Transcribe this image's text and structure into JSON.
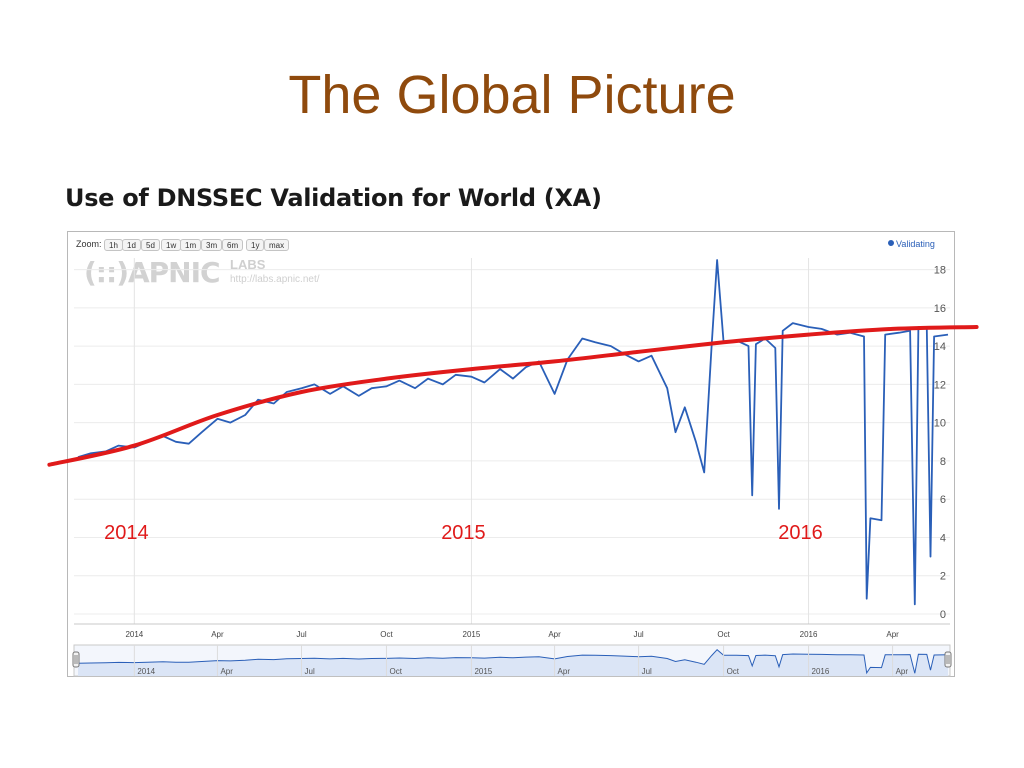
{
  "slide": {
    "title": "The Global Picture"
  },
  "chart_heading": "Use of DNSSEC Validation for World (XA)",
  "toolbar": {
    "zoom_label": "Zoom:",
    "buttons": [
      "1h",
      "1d",
      "5d",
      "1w",
      "1m",
      "3m",
      "6m",
      "1y",
      "max"
    ]
  },
  "logo": {
    "mark": "(::)APNIC",
    "labs": "LABS",
    "url": "http://labs.apnic.net/"
  },
  "colors": {
    "title": "#8f4a0d",
    "series": "#2a5fb8",
    "trend": "#e01a1a",
    "annotation": "#e01a1a"
  },
  "chart_data": {
    "type": "line",
    "title": "Use of DNSSEC Validation for World (XA)",
    "legend": {
      "entries": [
        "Validating"
      ],
      "placement": "top-right"
    },
    "y_axis": {
      "ticks": [
        0,
        2,
        4,
        6,
        8,
        10,
        12,
        14,
        16,
        18
      ],
      "range": [
        0,
        18.5
      ],
      "side": "right"
    },
    "x_axis": {
      "range": [
        "2013-11-01",
        "2016-05-31"
      ],
      "ticks": [
        {
          "label": "2014",
          "date": "2014-01-01"
        },
        {
          "label": "Apr",
          "date": "2014-04-01"
        },
        {
          "label": "Jul",
          "date": "2014-07-01"
        },
        {
          "label": "Oct",
          "date": "2014-10-01"
        },
        {
          "label": "2015",
          "date": "2015-01-01"
        },
        {
          "label": "Apr",
          "date": "2015-04-01"
        },
        {
          "label": "Jul",
          "date": "2015-07-01"
        },
        {
          "label": "Oct",
          "date": "2015-10-01"
        },
        {
          "label": "2016",
          "date": "2016-01-01"
        },
        {
          "label": "Apr",
          "date": "2016-04-01"
        }
      ]
    },
    "grid": true,
    "series": [
      {
        "name": "Validating",
        "points": [
          [
            "2013-11-01",
            8.2
          ],
          [
            "2013-11-15",
            8.4
          ],
          [
            "2013-12-01",
            8.5
          ],
          [
            "2013-12-15",
            8.8
          ],
          [
            "2014-01-01",
            8.7
          ],
          [
            "2014-01-15",
            9.0
          ],
          [
            "2014-02-01",
            9.3
          ],
          [
            "2014-02-15",
            9.0
          ],
          [
            "2014-03-01",
            8.9
          ],
          [
            "2014-03-15",
            9.5
          ],
          [
            "2014-04-01",
            10.2
          ],
          [
            "2014-04-15",
            10.0
          ],
          [
            "2014-05-01",
            10.4
          ],
          [
            "2014-05-15",
            11.2
          ],
          [
            "2014-06-01",
            11.0
          ],
          [
            "2014-06-15",
            11.6
          ],
          [
            "2014-07-01",
            11.8
          ],
          [
            "2014-07-15",
            12.0
          ],
          [
            "2014-08-01",
            11.5
          ],
          [
            "2014-08-15",
            11.9
          ],
          [
            "2014-09-01",
            11.4
          ],
          [
            "2014-09-15",
            11.8
          ],
          [
            "2014-10-01",
            11.9
          ],
          [
            "2014-10-15",
            12.2
          ],
          [
            "2014-11-01",
            11.8
          ],
          [
            "2014-11-15",
            12.3
          ],
          [
            "2014-12-01",
            12.0
          ],
          [
            "2014-12-15",
            12.5
          ],
          [
            "2015-01-01",
            12.4
          ],
          [
            "2015-01-15",
            12.1
          ],
          [
            "2015-02-01",
            12.8
          ],
          [
            "2015-02-15",
            12.3
          ],
          [
            "2015-03-01",
            12.9
          ],
          [
            "2015-03-15",
            13.2
          ],
          [
            "2015-04-01",
            11.5
          ],
          [
            "2015-04-15",
            13.3
          ],
          [
            "2015-05-01",
            14.4
          ],
          [
            "2015-05-15",
            14.2
          ],
          [
            "2015-06-01",
            14.0
          ],
          [
            "2015-06-15",
            13.6
          ],
          [
            "2015-07-01",
            13.2
          ],
          [
            "2015-07-15",
            13.5
          ],
          [
            "2015-08-01",
            11.8
          ],
          [
            "2015-08-10",
            9.5
          ],
          [
            "2015-08-20",
            10.8
          ],
          [
            "2015-09-01",
            9.0
          ],
          [
            "2015-09-10",
            7.4
          ],
          [
            "2015-09-18",
            14.0
          ],
          [
            "2015-09-24",
            18.5
          ],
          [
            "2015-10-01",
            14.2
          ],
          [
            "2015-10-15",
            14.3
          ],
          [
            "2015-10-28",
            14.0
          ],
          [
            "2015-11-01",
            6.2
          ],
          [
            "2015-11-05",
            14.1
          ],
          [
            "2015-11-15",
            14.4
          ],
          [
            "2015-11-26",
            13.9
          ],
          [
            "2015-11-30",
            5.5
          ],
          [
            "2015-12-04",
            14.8
          ],
          [
            "2015-12-15",
            15.2
          ],
          [
            "2016-01-01",
            15.0
          ],
          [
            "2016-01-15",
            14.9
          ],
          [
            "2016-02-01",
            14.6
          ],
          [
            "2016-02-15",
            14.7
          ],
          [
            "2016-03-01",
            14.5
          ],
          [
            "2016-03-04",
            0.8
          ],
          [
            "2016-03-08",
            5.0
          ],
          [
            "2016-03-20",
            4.9
          ],
          [
            "2016-03-24",
            14.6
          ],
          [
            "2016-04-08",
            14.7
          ],
          [
            "2016-04-20",
            14.8
          ],
          [
            "2016-04-25",
            0.5
          ],
          [
            "2016-04-29",
            15.0
          ],
          [
            "2016-05-08",
            14.9
          ],
          [
            "2016-05-12",
            3.0
          ],
          [
            "2016-05-16",
            14.5
          ],
          [
            "2016-05-31",
            14.6
          ]
        ]
      }
    ],
    "annotations": [
      {
        "text": "2014",
        "date": "2014-01-01"
      },
      {
        "text": "2015",
        "date": "2015-01-01"
      },
      {
        "text": "2016",
        "date": "2016-01-01"
      }
    ],
    "trend_line": [
      [
        "2013-10-01",
        7.8
      ],
      [
        "2014-01-01",
        8.8
      ],
      [
        "2014-04-01",
        10.4
      ],
      [
        "2014-07-01",
        11.6
      ],
      [
        "2014-10-01",
        12.3
      ],
      [
        "2015-01-01",
        12.8
      ],
      [
        "2015-04-01",
        13.2
      ],
      [
        "2015-07-01",
        13.7
      ],
      [
        "2015-10-01",
        14.2
      ],
      [
        "2016-01-01",
        14.6
      ],
      [
        "2016-04-01",
        14.9
      ],
      [
        "2016-07-01",
        15.0
      ]
    ],
    "navigator": {
      "ticks": [
        "2014",
        "Apr",
        "Jul",
        "Oct",
        "2015",
        "Apr",
        "Jul",
        "Oct",
        "2016",
        "Apr"
      ]
    }
  }
}
